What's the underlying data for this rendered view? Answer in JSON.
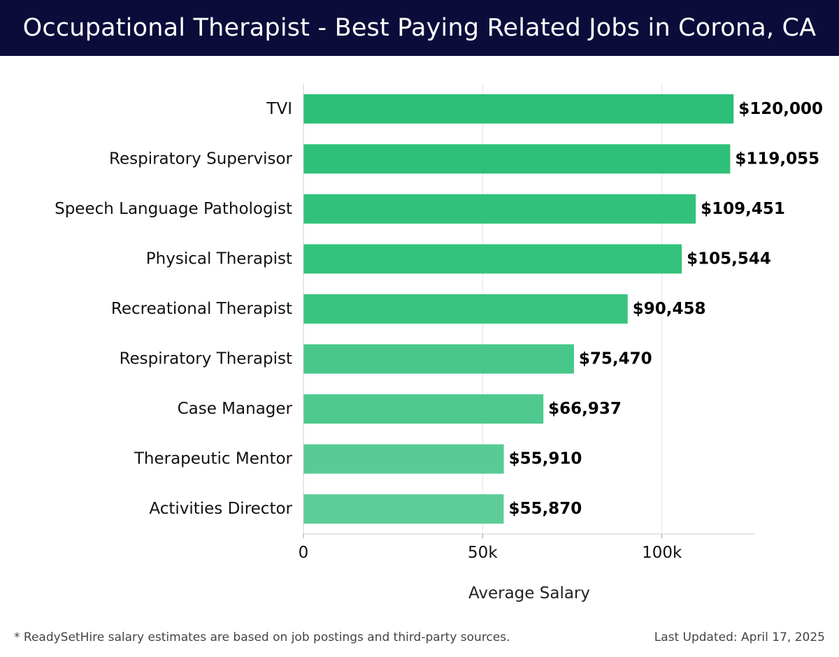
{
  "header": {
    "title": "Occupational Therapist - Best Paying Related Jobs in Corona, CA"
  },
  "chart_data": {
    "type": "bar",
    "orientation": "horizontal",
    "categories": [
      "TVI",
      "Respiratory Supervisor",
      "Speech Language Pathologist",
      "Physical Therapist",
      "Recreational Therapist",
      "Respiratory Therapist",
      "Case Manager",
      "Therapeutic Mentor",
      "Activities Director"
    ],
    "values": [
      120000,
      119055,
      109451,
      105544,
      90458,
      75470,
      66937,
      55910,
      55870
    ],
    "value_labels": [
      "$120,000",
      "$119,055",
      "$109,451",
      "$105,544",
      "$90,458",
      "$75,470",
      "$66,937",
      "$55,910",
      "$55,870"
    ],
    "xlabel": "Average Salary",
    "xlim": [
      0,
      126000
    ],
    "x_ticks": [
      0,
      50000,
      100000
    ],
    "x_tick_labels": [
      "0",
      "50k",
      "100k"
    ],
    "grid": true,
    "bar_colors": [
      "#2cbf77",
      "#2dc078",
      "#31c17b",
      "#33c27c",
      "#3ac480",
      "#47c789",
      "#4fc98e",
      "#58cb94",
      "#5ccd97"
    ]
  },
  "footer": {
    "note": "* ReadySetHire salary estimates are based on job postings and third-party sources.",
    "updated": "Last Updated: April 17, 2025"
  }
}
